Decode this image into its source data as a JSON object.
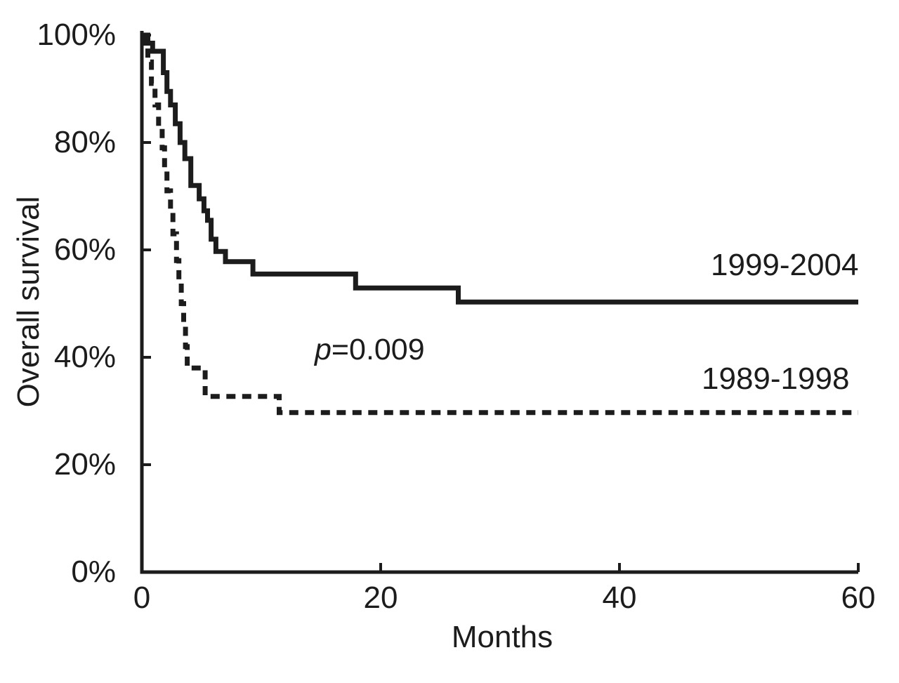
{
  "figure": {
    "background": "#ffffff",
    "ink_color": "#1c1c1c"
  },
  "chart_data": {
    "type": "line",
    "subtype": "kaplan-meier-step-curve",
    "title": "",
    "xlabel": "Months",
    "ylabel": "Overall survival",
    "xlim": [
      0,
      60
    ],
    "ylim": [
      0,
      100
    ],
    "grid": false,
    "legend_position": "inline-labels-right",
    "x_ticks": [
      {
        "value": 0,
        "label": "0"
      },
      {
        "value": 20,
        "label": "20"
      },
      {
        "value": 40,
        "label": "40"
      },
      {
        "value": 60,
        "label": "60"
      }
    ],
    "y_ticks": [
      {
        "value": 100,
        "label": "100%"
      },
      {
        "value": 80,
        "label": "80%"
      },
      {
        "value": 60,
        "label": "60%"
      },
      {
        "value": 40,
        "label": "40%"
      },
      {
        "value": 20,
        "label": "20%"
      },
      {
        "value": 0,
        "label": "0%"
      }
    ],
    "annotation": {
      "symbol": "p",
      "value_text": "=0.009",
      "x_months": 19.1,
      "y_percent": 40.9
    },
    "series": [
      {
        "name": "1999-2004",
        "style": "solid",
        "label_anchor": {
          "x_months": 53.6,
          "y_percent": 56.9
        },
        "end_month": 60,
        "steps": [
          [
            0,
            100
          ],
          [
            0.3,
            98.5
          ],
          [
            0.9,
            97
          ],
          [
            1.8,
            93
          ],
          [
            2.1,
            89.5
          ],
          [
            2.4,
            87
          ],
          [
            2.8,
            83.5
          ],
          [
            3.2,
            80
          ],
          [
            3.6,
            77
          ],
          [
            4.1,
            72
          ],
          [
            4.8,
            69.5
          ],
          [
            5.2,
            67.3
          ],
          [
            5.5,
            65.5
          ],
          [
            5.8,
            62
          ],
          [
            6.2,
            59.7
          ],
          [
            7.0,
            57.8
          ],
          [
            9.3,
            55.5
          ],
          [
            17.9,
            52.9
          ],
          [
            26.5,
            50.3
          ]
        ]
      },
      {
        "name": "1989-1998",
        "style": "dashed",
        "label_anchor": {
          "x_months": 52.8,
          "y_percent": 35.7
        },
        "end_month": 60,
        "steps": [
          [
            0.3,
            100
          ],
          [
            0.5,
            95
          ],
          [
            0.8,
            91
          ],
          [
            1.1,
            87
          ],
          [
            1.4,
            83
          ],
          [
            1.7,
            79
          ],
          [
            1.9,
            75
          ],
          [
            2.1,
            71
          ],
          [
            2.4,
            67
          ],
          [
            2.6,
            63
          ],
          [
            2.9,
            58
          ],
          [
            3.1,
            54
          ],
          [
            3.3,
            50
          ],
          [
            3.5,
            46
          ],
          [
            3.65,
            42
          ],
          [
            3.8,
            38
          ],
          [
            5.3,
            32.7
          ],
          [
            11.5,
            29.7
          ]
        ]
      }
    ]
  }
}
